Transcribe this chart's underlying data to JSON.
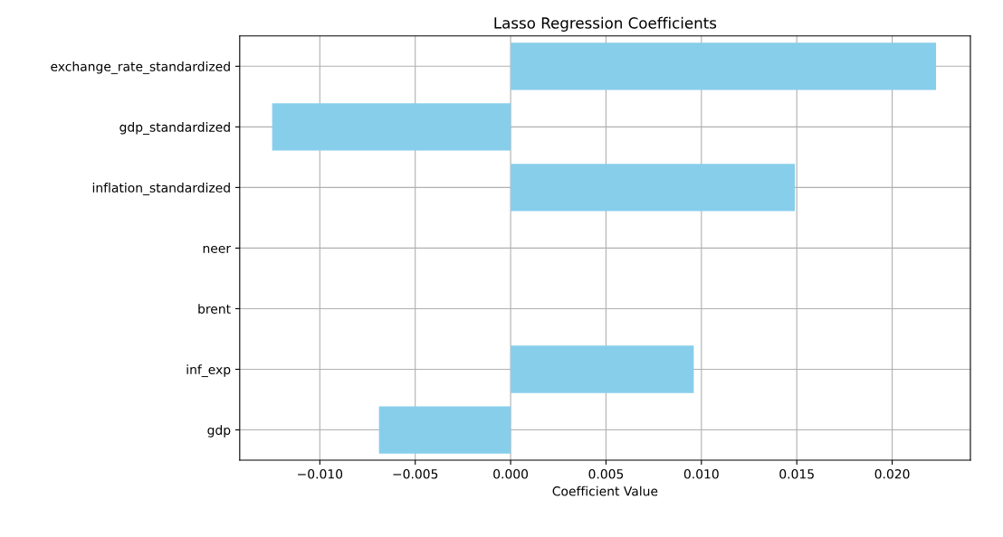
{
  "chart_data": {
    "type": "bar",
    "orientation": "horizontal",
    "title": "Lasso Regression Coefficients",
    "xlabel": "Coefficient Value",
    "categories": [
      "exchange_rate_standardized",
      "gdp_standardized",
      "inflation_standardized",
      "neer",
      "brent",
      "inf_exp",
      "gdp"
    ],
    "values": [
      0.0223,
      -0.0125,
      0.0149,
      0,
      0,
      0.0096,
      -0.0069
    ],
    "color": "#87ceeb",
    "xlim": [
      -0.0142,
      0.0241
    ],
    "xticks": [
      {
        "value": -0.01,
        "label": "−0.010"
      },
      {
        "value": -0.005,
        "label": "−0.005"
      },
      {
        "value": 0,
        "label": "0.000"
      },
      {
        "value": 0.005,
        "label": "0.005"
      },
      {
        "value": 0.01,
        "label": "0.010"
      },
      {
        "value": 0.015,
        "label": "0.015"
      },
      {
        "value": 0.02,
        "label": "0.020"
      }
    ],
    "grid": true
  }
}
